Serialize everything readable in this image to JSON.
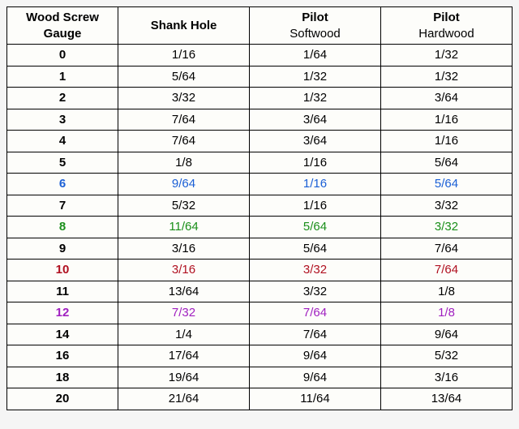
{
  "table": {
    "background_color": "#fdfdfa",
    "border_color": "#000000",
    "font_family": "Arial, sans-serif",
    "header": {
      "col1": "Wood Screw Gauge",
      "col2": "Shank Hole",
      "col3_top": "Pilot",
      "col3_sub": "Softwood",
      "col4_top": "Pilot",
      "col4_sub": "Hardwood"
    },
    "row_colors": {
      "default": "#000000",
      "blue": "#1a5fd6",
      "green": "#1a8f1a",
      "darkred": "#b01020",
      "purple": "#a020c0"
    },
    "rows": [
      {
        "gauge": "0",
        "shank": "1/16",
        "soft": "1/64",
        "hard": "1/32",
        "color": "default"
      },
      {
        "gauge": "1",
        "shank": "5/64",
        "soft": "1/32",
        "hard": "1/32",
        "color": "default"
      },
      {
        "gauge": "2",
        "shank": "3/32",
        "soft": "1/32",
        "hard": "3/64",
        "color": "default"
      },
      {
        "gauge": "3",
        "shank": "7/64",
        "soft": "3/64",
        "hard": "1/16",
        "color": "default"
      },
      {
        "gauge": "4",
        "shank": "7/64",
        "soft": "3/64",
        "hard": "1/16",
        "color": "default"
      },
      {
        "gauge": "5",
        "shank": "1/8",
        "soft": "1/16",
        "hard": "5/64",
        "color": "default"
      },
      {
        "gauge": "6",
        "shank": "9/64",
        "soft": "1/16",
        "hard": "5/64",
        "color": "blue"
      },
      {
        "gauge": "7",
        "shank": "5/32",
        "soft": "1/16",
        "hard": "3/32",
        "color": "default"
      },
      {
        "gauge": "8",
        "shank": "11/64",
        "soft": "5/64",
        "hard": "3/32",
        "color": "green"
      },
      {
        "gauge": "9",
        "shank": "3/16",
        "soft": "5/64",
        "hard": "7/64",
        "color": "default"
      },
      {
        "gauge": "10",
        "shank": "3/16",
        "soft": "3/32",
        "hard": "7/64",
        "color": "darkred"
      },
      {
        "gauge": "11",
        "shank": "13/64",
        "soft": "3/32",
        "hard": "1/8",
        "color": "default"
      },
      {
        "gauge": "12",
        "shank": "7/32",
        "soft": "7/64",
        "hard": "1/8",
        "color": "purple"
      },
      {
        "gauge": "14",
        "shank": "1/4",
        "soft": "7/64",
        "hard": "9/64",
        "color": "default"
      },
      {
        "gauge": "16",
        "shank": "17/64",
        "soft": "9/64",
        "hard": "5/32",
        "color": "default"
      },
      {
        "gauge": "18",
        "shank": "19/64",
        "soft": "9/64",
        "hard": "3/16",
        "color": "default"
      },
      {
        "gauge": "20",
        "shank": "21/64",
        "soft": "11/64",
        "hard": "13/64",
        "color": "default"
      }
    ]
  }
}
